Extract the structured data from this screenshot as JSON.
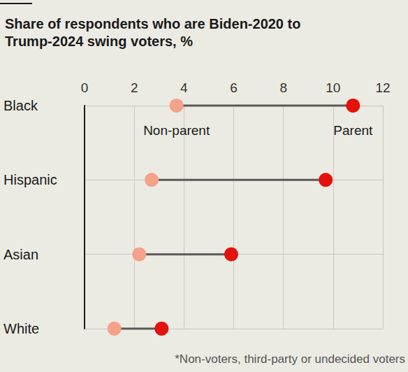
{
  "chart_data": {
    "type": "dumbbell",
    "title": "Share of respondents who are Biden-2020 to Trump-2024 swing voters, %",
    "categories": [
      "Black",
      "Hispanic",
      "Asian",
      "White"
    ],
    "series": [
      {
        "name": "Non-parent",
        "color": "#f4a28a",
        "values": [
          3.7,
          2.7,
          2.2,
          1.2
        ]
      },
      {
        "name": "Parent",
        "color": "#e3120b",
        "values": [
          10.8,
          9.7,
          5.9,
          3.1
        ]
      }
    ],
    "xlim": [
      0,
      12
    ],
    "xticks": [
      0,
      2,
      4,
      6,
      8,
      10,
      12
    ],
    "orientation": "horizontal",
    "grid": true,
    "annotations": [
      "*Non-voters, third-party or undecided voters"
    ]
  }
}
